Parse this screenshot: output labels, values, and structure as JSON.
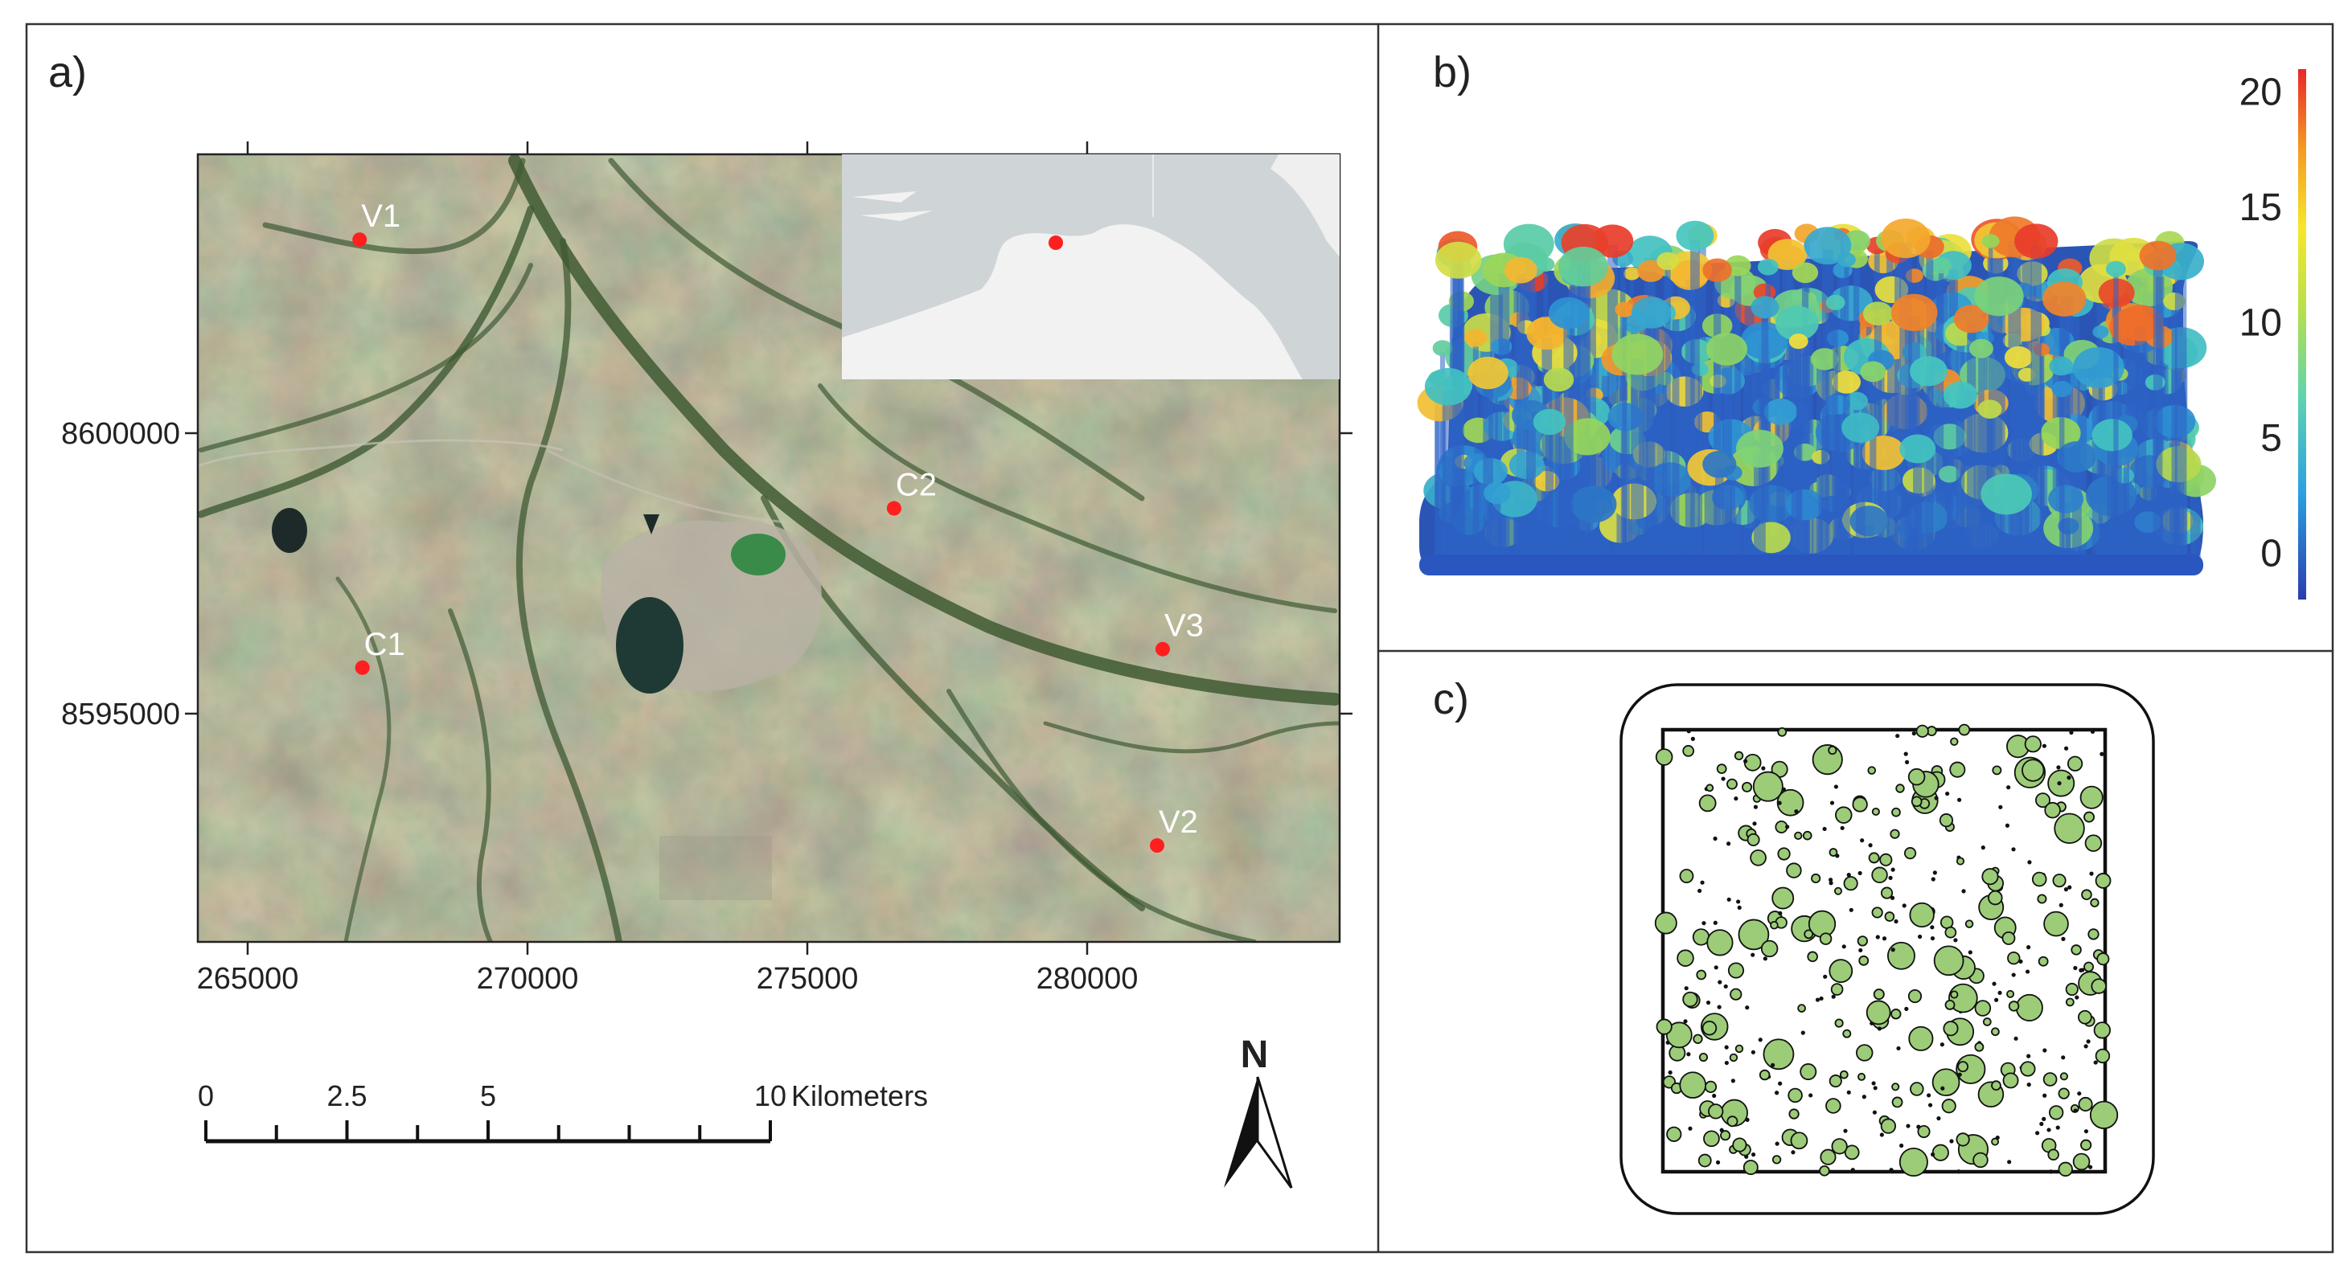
{
  "panels": {
    "a": "a)",
    "b": "b)",
    "c": "c)"
  },
  "map": {
    "x_ticks": [
      "265000",
      "270000",
      "275000",
      "280000"
    ],
    "y_ticks": [
      "8600000",
      "8595000"
    ],
    "sites": [
      {
        "label": "V1",
        "x": 267000,
        "y": 8603450
      },
      {
        "label": "C2",
        "x": 276550,
        "y": 8598660
      },
      {
        "label": "C1",
        "x": 267050,
        "y": 8595820
      },
      {
        "label": "V3",
        "x": 281350,
        "y": 8596150
      },
      {
        "label": "V2",
        "x": 281250,
        "y": 8592650
      }
    ],
    "scalebar": {
      "labels": [
        "0",
        "2.5",
        "5",
        "10"
      ],
      "unit": "Kilometers"
    },
    "north_label": "N",
    "colors": {
      "site_marker": "#ff1f1f",
      "inset_land": "#f2f2f2",
      "inset_sea": "#cfd4d6"
    }
  },
  "colorbar": {
    "ticks": [
      "20",
      "15",
      "10",
      "5",
      "0"
    ],
    "range": [
      -2,
      21
    ]
  },
  "stem_map": {
    "marker_color": "#9ccc78"
  }
}
